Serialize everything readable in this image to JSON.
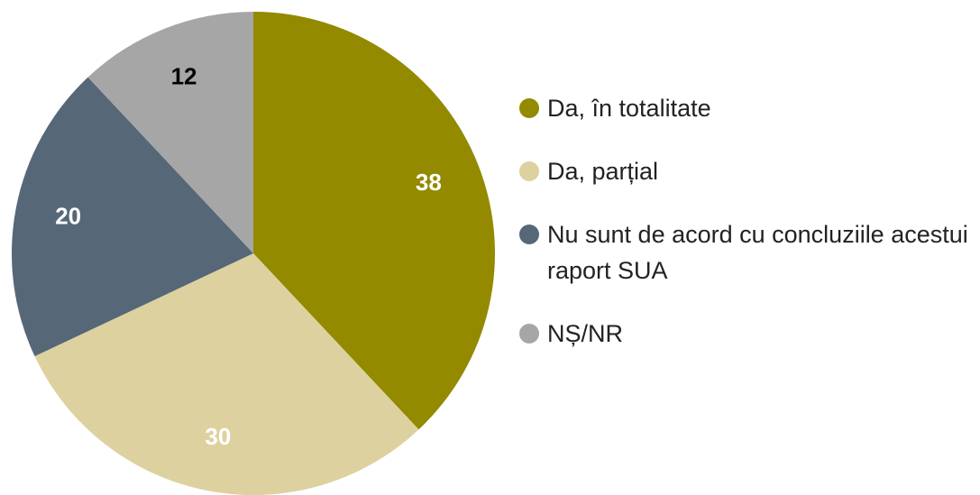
{
  "chart_data": {
    "type": "pie",
    "categories": [
      "Da, în totalitate",
      "Da, parțial",
      "Nu sunt de acord cu concluziile acestui raport SUA",
      "NȘ/NR"
    ],
    "values": [
      38,
      30,
      20,
      12
    ],
    "colors": [
      "#938a00",
      "#ddd19f",
      "#566778",
      "#a6a6a6"
    ],
    "label_colors": [
      "#ffffff",
      "#ffffff",
      "#ffffff",
      "#000000"
    ],
    "start_angle": 0,
    "direction": "clockwise",
    "legend": "right"
  }
}
